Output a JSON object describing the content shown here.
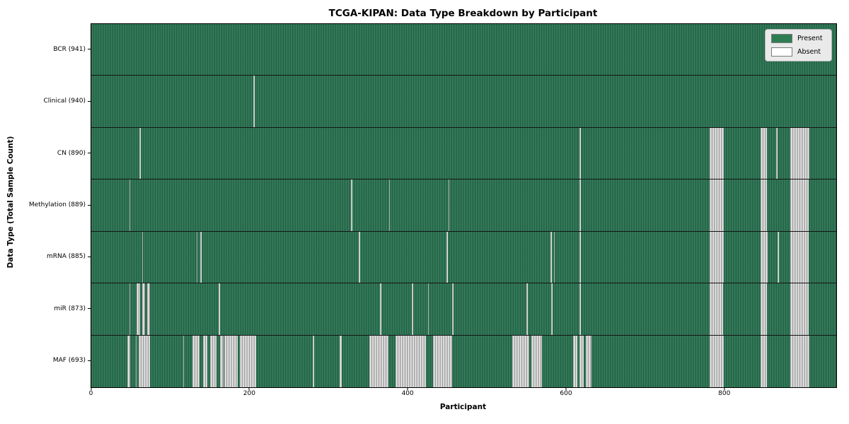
{
  "title": "TCGA-KIPAN: Data Type Breakdown by Participant",
  "axes": {
    "xlabel": "Participant",
    "ylabel": "Data Type (Total Sample Count)"
  },
  "legend": {
    "items": [
      {
        "label": "Present",
        "color": "#2e7d52"
      },
      {
        "label": "Absent",
        "color": "#ffffff"
      }
    ]
  },
  "chart_data": {
    "type": "heatmap",
    "title": "TCGA-KIPAN: Data Type Breakdown by Participant",
    "xlabel": "Participant",
    "ylabel": "Data Type (Total Sample Count)",
    "x_ticks": [
      0,
      200,
      400,
      600,
      800
    ],
    "n_participants": 941,
    "legend_position": "upper right",
    "colors": {
      "present": "#2e7252",
      "absent": "#ededed"
    },
    "rows": [
      {
        "label": "BCR (941)",
        "total": 941,
        "absent_ranges": []
      },
      {
        "label": "Clinical (940)",
        "total": 940,
        "absent_ranges": [
          [
            205,
            206
          ]
        ]
      },
      {
        "label": "CN (890)",
        "total": 890,
        "absent_ranges": [
          [
            61,
            62
          ],
          [
            617,
            618
          ],
          [
            781,
            799
          ],
          [
            845,
            853
          ],
          [
            865,
            866
          ],
          [
            883,
            907
          ]
        ]
      },
      {
        "label": "Methylation (889)",
        "total": 889,
        "absent_ranges": [
          [
            48,
            49
          ],
          [
            328,
            329
          ],
          [
            376,
            377
          ],
          [
            451,
            452
          ],
          [
            617,
            618
          ],
          [
            781,
            799
          ],
          [
            845,
            853
          ],
          [
            883,
            906
          ]
        ]
      },
      {
        "label": "mRNA (885)",
        "total": 885,
        "absent_ranges": [
          [
            64,
            65
          ],
          [
            133,
            134
          ],
          [
            138,
            139
          ],
          [
            338,
            339
          ],
          [
            449,
            450
          ],
          [
            580,
            582
          ],
          [
            584,
            585
          ],
          [
            617,
            618
          ],
          [
            781,
            799
          ],
          [
            845,
            854
          ],
          [
            867,
            868
          ],
          [
            883,
            906
          ]
        ]
      },
      {
        "label": "miR (873)",
        "total": 873,
        "absent_ranges": [
          [
            48,
            49
          ],
          [
            57,
            62
          ],
          [
            64,
            68
          ],
          [
            71,
            74
          ],
          [
            161,
            162
          ],
          [
            365,
            366
          ],
          [
            405,
            406
          ],
          [
            425,
            426
          ],
          [
            456,
            457
          ],
          [
            550,
            551
          ],
          [
            581,
            582
          ],
          [
            617,
            618
          ],
          [
            781,
            798
          ],
          [
            845,
            853
          ],
          [
            883,
            906
          ]
        ]
      },
      {
        "label": "MAF (693)",
        "total": 693,
        "absent_ranges": [
          [
            46,
            49
          ],
          [
            56,
            57
          ],
          [
            60,
            74
          ],
          [
            116,
            117
          ],
          [
            128,
            137
          ],
          [
            141,
            147
          ],
          [
            150,
            158
          ],
          [
            163,
            167
          ],
          [
            168,
            185
          ],
          [
            188,
            208
          ],
          [
            280,
            281
          ],
          [
            314,
            316
          ],
          [
            351,
            375
          ],
          [
            384,
            423
          ],
          [
            432,
            456
          ],
          [
            532,
            553
          ],
          [
            556,
            569
          ],
          [
            609,
            614
          ],
          [
            617,
            622
          ],
          [
            625,
            632
          ],
          [
            781,
            799
          ],
          [
            845,
            853
          ],
          [
            883,
            907
          ]
        ]
      }
    ]
  }
}
